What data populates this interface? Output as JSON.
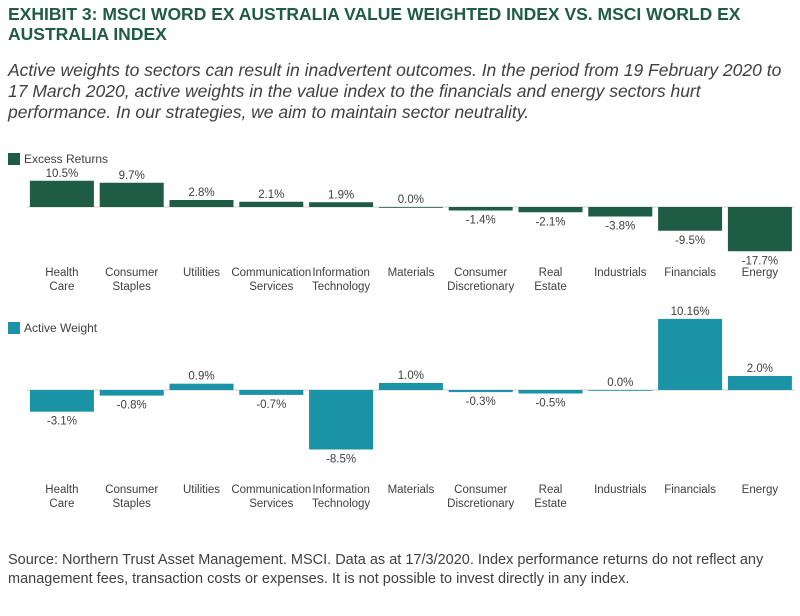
{
  "title": "EXHIBIT 3: MSCI WORD EX AUSTRALIA VALUE WEIGHTED INDEX VS. MSCI WORLD EX AUSTRALIA INDEX",
  "subtitle": "Active weights to sectors can result in inadvertent outcomes. In the period from 19 February 2020 to 17 March 2020, active weights in the value index to the financials and energy sectors hurt performance. In our strategies, we aim to maintain sector neutrality.",
  "source": "Source: Northern Trust Asset Management. MSCI.  Data as at 17/3/2020.  Index performance returns do not reflect any management fees, transaction costs or expenses. It is not possible to invest directly in any index.",
  "colors": {
    "excess": "#1f5c45",
    "active": "#1a93a6",
    "title": "#1f5c45",
    "text": "#404040"
  },
  "chart_data": [
    {
      "type": "bar",
      "legend": "Excess Returns",
      "categories": [
        [
          "Health",
          "Care"
        ],
        [
          "Consumer",
          "Staples"
        ],
        [
          "Utilities"
        ],
        [
          "Communication",
          "Services"
        ],
        [
          "Information",
          "Technology"
        ],
        [
          "Materials"
        ],
        [
          "Consumer",
          "Discretionary"
        ],
        [
          "Real",
          "Estate"
        ],
        [
          "Industrials"
        ],
        [
          "Financials"
        ],
        [
          "Energy"
        ]
      ],
      "values": [
        10.5,
        9.7,
        2.8,
        2.1,
        1.9,
        0.0,
        -1.4,
        -2.1,
        -3.8,
        -9.5,
        -17.7
      ],
      "labels": [
        "10.5%",
        "9.7%",
        "2.8%",
        "2.1%",
        "1.9%",
        "0.0%",
        "-1.4%",
        "-2.1%",
        "-3.8%",
        "-9.5%",
        "-17.7%"
      ]
    },
    {
      "type": "bar",
      "legend": "Active Weight",
      "categories": [
        [
          "Health",
          "Care"
        ],
        [
          "Consumer",
          "Staples"
        ],
        [
          "Utilities"
        ],
        [
          "Communication",
          "Services"
        ],
        [
          "Information",
          "Technology"
        ],
        [
          "Materials"
        ],
        [
          "Consumer",
          "Discretionary"
        ],
        [
          "Real",
          "Estate"
        ],
        [
          "Industrials"
        ],
        [
          "Financials"
        ],
        [
          "Energy"
        ]
      ],
      "values": [
        -3.1,
        -0.8,
        0.9,
        -0.7,
        -8.5,
        1.0,
        -0.3,
        -0.5,
        0.0,
        10.16,
        2.0
      ],
      "labels": [
        "-3.1%",
        "-0.8%",
        "0.9%",
        "-0.7%",
        "-8.5%",
        "1.0%",
        "-0.3%",
        "-0.5%",
        "0.0%",
        "10.16%",
        "2.0%"
      ]
    }
  ]
}
